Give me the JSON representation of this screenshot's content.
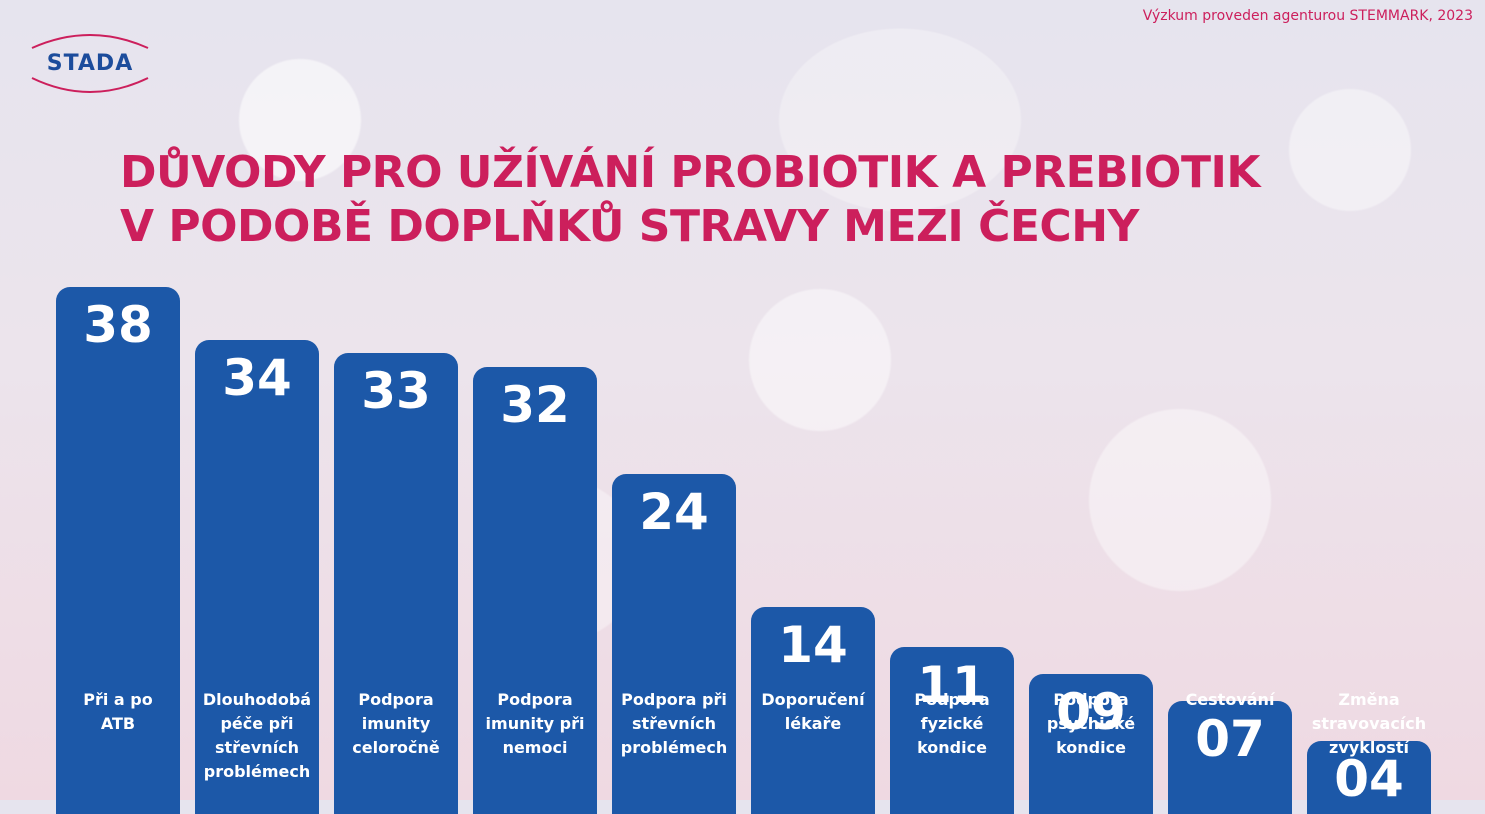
{
  "source_note": "Výzkum proveden agenturou STEMMARK, 2023",
  "logo": {
    "text": "STADA",
    "text_color": "#1c4c9c",
    "swoosh_color": "#cc1f5c"
  },
  "title_lines": [
    "DŮVODY PRO UŽÍVÁNÍ PROBIOTIK A PREBIOTIK",
    "V PODOBĚ DOPLŇKŮ STRAVY MEZI ČECHY"
  ],
  "chart_data": {
    "type": "bar",
    "categories": [
      "Při a po ATB",
      "Dlouhodobá péče při střevních problémech",
      "Podpora imunity celoročně",
      "Podpora imunity při nemoci",
      "Podpora při střevních problémech",
      "Doporučení lékaře",
      "Podpora fyzické kondice",
      "Podpora psychické kondice",
      "Cestování",
      "Změna stravovacích zvyklostí"
    ],
    "label_lines": [
      [
        "Při a po",
        "ATB"
      ],
      [
        "Dlouhodobá",
        "péče při",
        "střevních",
        "problémech"
      ],
      [
        "Podpora",
        "imunity",
        "celoročně"
      ],
      [
        "Podpora",
        "imunity při",
        "nemoci"
      ],
      [
        "Podpora při",
        "střevních",
        "problémech"
      ],
      [
        "Doporučení",
        "lékaře"
      ],
      [
        "Podpora",
        "fyzické",
        "kondice"
      ],
      [
        "Podpora",
        "psychické",
        "kondice"
      ],
      [
        "Cestování"
      ],
      [
        "Změna",
        "stravovacích",
        "zvyklostí"
      ]
    ],
    "values": [
      38,
      34,
      33,
      32,
      24,
      14,
      11,
      9,
      7,
      4
    ],
    "value_labels": [
      "38",
      "34",
      "33",
      "32",
      "24",
      "14",
      "11",
      "09",
      "07",
      "04"
    ],
    "bar_color": "#1c58a8",
    "title": "DŮVODY PRO UŽÍVÁNÍ PROBIOTIK A PREBIOTIK V PODOBĚ DOPLŇKŮ STRAVY MEZI ČECHY",
    "xlabel": "",
    "ylabel": ""
  }
}
